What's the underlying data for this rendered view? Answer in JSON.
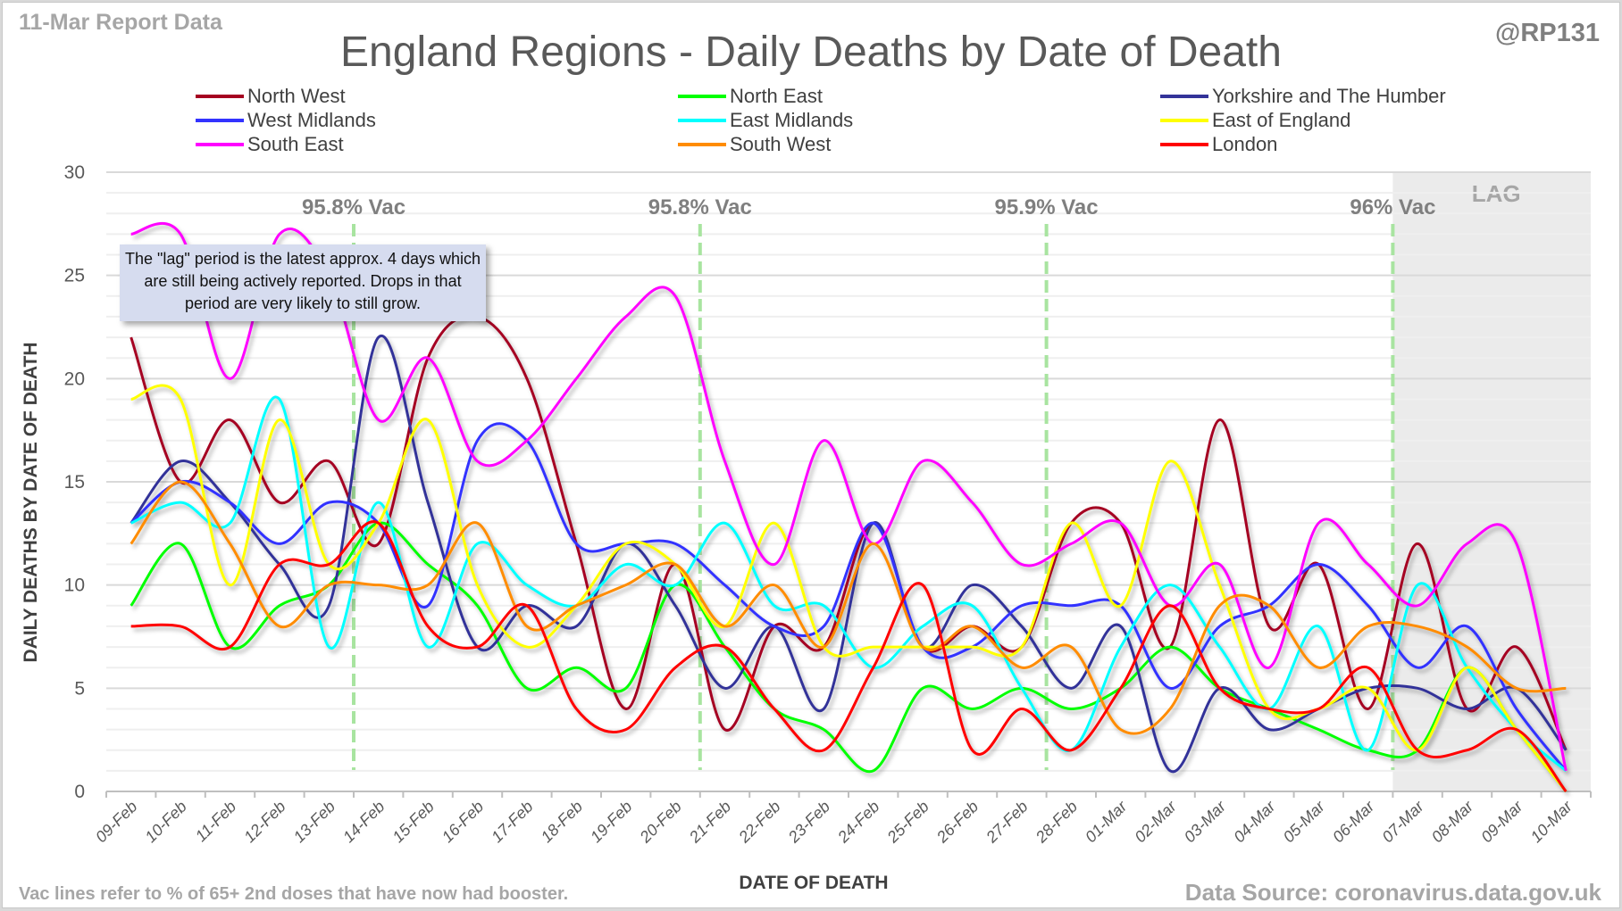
{
  "header": {
    "report_label": "11-Mar Report Data",
    "handle": "@RP131",
    "title": "England Regions - Daily Deaths by Date of Death"
  },
  "footer": {
    "note": "Vac lines refer to % of 65+ 2nd doses that have now had booster.",
    "source": "Data Source: coronavirus.data.gov.uk"
  },
  "callout": {
    "text": "The \"lag\" period is the latest approx. 4 days which are still being actively reported. Drops in that period are very likely to still grow."
  },
  "chart_data": {
    "type": "line",
    "title": "England Regions - Daily Deaths by Date of Death",
    "xlabel": "DATE OF DEATH",
    "ylabel": "DAILY DEATHS BY DATE OF DEATH",
    "ylim": [
      0,
      30
    ],
    "yticks": [
      0,
      5,
      10,
      15,
      20,
      25,
      30
    ],
    "grid": true,
    "legend_position": "top",
    "smoothed": true,
    "categories": [
      "09-Feb",
      "10-Feb",
      "11-Feb",
      "12-Feb",
      "13-Feb",
      "14-Feb",
      "15-Feb",
      "16-Feb",
      "17-Feb",
      "18-Feb",
      "19-Feb",
      "20-Feb",
      "21-Feb",
      "22-Feb",
      "23-Feb",
      "24-Feb",
      "25-Feb",
      "26-Feb",
      "27-Feb",
      "28-Feb",
      "01-Mar",
      "02-Mar",
      "03-Mar",
      "04-Mar",
      "05-Mar",
      "06-Mar",
      "07-Mar",
      "08-Mar",
      "09-Mar",
      "10-Mar"
    ],
    "series": [
      {
        "name": "North West",
        "color": "#a50021",
        "values": [
          22,
          15,
          18,
          14,
          16,
          12,
          21,
          23,
          20,
          12,
          4,
          11,
          3,
          8,
          7,
          13,
          7,
          8,
          7,
          13,
          13,
          7,
          18,
          8,
          11,
          4,
          12,
          4,
          7,
          2
        ]
      },
      {
        "name": "North East",
        "color": "#00ff00",
        "values": [
          9,
          12,
          7,
          9,
          10,
          13,
          11,
          9,
          5,
          6,
          5,
          10,
          7,
          4,
          3,
          1,
          5,
          4,
          5,
          4,
          5,
          7,
          5,
          4,
          3,
          2,
          2,
          6,
          3,
          0
        ]
      },
      {
        "name": "Yorkshire and The Humber",
        "color": "#333399",
        "values": [
          13,
          16,
          14,
          11,
          9,
          22,
          14,
          7,
          9,
          8,
          12,
          9,
          5,
          8,
          4,
          13,
          7,
          10,
          8,
          5,
          8,
          1,
          5,
          3,
          4,
          5,
          5,
          4,
          5,
          2
        ]
      },
      {
        "name": "West Midlands",
        "color": "#3333ff",
        "values": [
          13,
          15,
          14,
          12,
          14,
          13,
          9,
          17,
          17,
          12,
          12,
          12,
          10,
          8,
          8,
          13,
          7,
          7,
          9,
          9,
          9,
          5,
          8,
          9,
          11,
          9,
          6,
          8,
          4,
          1
        ]
      },
      {
        "name": "East Midlands",
        "color": "#00ffff",
        "values": [
          13,
          14,
          13,
          19,
          7,
          14,
          7,
          12,
          10,
          9,
          11,
          10,
          13,
          9,
          9,
          6,
          8,
          9,
          5,
          2,
          7,
          10,
          7,
          4,
          8,
          2,
          10,
          6,
          3,
          1
        ]
      },
      {
        "name": "East of England",
        "color": "#ffff00",
        "values": [
          19,
          19,
          10,
          18,
          11,
          13,
          18,
          10,
          7,
          9,
          12,
          11,
          8,
          13,
          7,
          7,
          7,
          7,
          7,
          13,
          9,
          16,
          10,
          4,
          4,
          5,
          2,
          6,
          3,
          0
        ]
      },
      {
        "name": "South East",
        "color": "#ff00ff",
        "values": [
          27,
          27,
          20,
          27,
          25,
          18,
          21,
          16,
          17,
          20,
          23,
          24,
          16,
          11,
          17,
          12,
          16,
          14,
          11,
          12,
          13,
          9,
          11,
          6,
          13,
          11,
          9,
          12,
          12,
          1
        ]
      },
      {
        "name": "South West",
        "color": "#ff8c00",
        "values": [
          12,
          15,
          12,
          8,
          10,
          10,
          10,
          13,
          8,
          9,
          10,
          11,
          8,
          10,
          7,
          12,
          7,
          8,
          6,
          7,
          3,
          4,
          9,
          9,
          6,
          8,
          8,
          7,
          5,
          5
        ]
      },
      {
        "name": "London",
        "color": "#ff0000",
        "values": [
          8,
          8,
          7,
          11,
          11,
          13,
          8,
          7,
          9,
          4,
          3,
          6,
          7,
          4,
          2,
          6,
          10,
          2,
          4,
          2,
          5,
          9,
          5,
          4,
          4,
          6,
          2,
          2,
          3,
          0
        ]
      }
    ],
    "annotations": {
      "vac_lines": [
        {
          "label": "95.8% Vac",
          "at_between": [
            "13-Feb",
            "14-Feb"
          ]
        },
        {
          "label": "95.8% Vac",
          "at_between": [
            "20-Feb",
            "21-Feb"
          ]
        },
        {
          "label": "95.9% Vac",
          "at_between": [
            "27-Feb",
            "28-Feb"
          ]
        },
        {
          "label": "96% Vac",
          "at_between": [
            "06-Mar",
            "07-Mar"
          ]
        }
      ],
      "lag_region": {
        "label": "LAG",
        "from": "07-Mar",
        "to": "10-Mar"
      }
    }
  }
}
